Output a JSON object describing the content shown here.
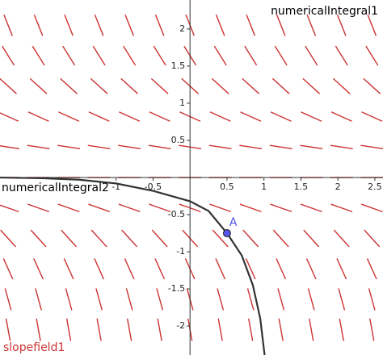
{
  "chart_data": {
    "type": "slopefield",
    "xlim": [
      -2.57,
      2.61
    ],
    "ylim": [
      -2.39,
      2.39
    ],
    "xticks": [
      -1,
      -0.5,
      0.5,
      1,
      1.5,
      2,
      2.5
    ],
    "yticks": [
      -2,
      -1.5,
      -1,
      -0.5,
      0.5,
      1,
      1.5,
      2
    ],
    "field": {
      "name": "slopefield1",
      "color": "#cc3333",
      "x": [
        -2.46,
        -2.05,
        -1.64,
        -1.23,
        -0.82,
        -0.41,
        0,
        0.41,
        0.82,
        1.23,
        1.64,
        2.05,
        2.46
      ],
      "rows": [
        {
          "y": 2.05,
          "slope": -2.5
        },
        {
          "y": 1.64,
          "slope": -1.6
        },
        {
          "y": 1.23,
          "slope": -0.9
        },
        {
          "y": 0.82,
          "slope": -0.45
        },
        {
          "y": 0.41,
          "slope": -0.15
        },
        {
          "y": 0,
          "slope": 0
        },
        {
          "y": -0.41,
          "slope": -0.35
        },
        {
          "y": -0.82,
          "slope": -1.1
        },
        {
          "y": -1.23,
          "slope": -2.2
        },
        {
          "y": -1.64,
          "slope": -3.6
        },
        {
          "y": -2.05,
          "slope": -5.5
        }
      ]
    },
    "curve": {
      "name": "numericalIntegral2",
      "color": "#333333",
      "x": [
        -2.6,
        -2,
        -1.5,
        -1,
        -0.5,
        0,
        0.25,
        0.5,
        0.7,
        0.85,
        0.95,
        1.01
      ],
      "y": [
        0,
        -0.01,
        -0.03,
        -0.08,
        -0.18,
        -0.32,
        -0.45,
        -0.75,
        -1.05,
        -1.45,
        -1.9,
        -2.4
      ]
    },
    "other_curve_label": "numericalIntegral1",
    "point": {
      "name": "A",
      "x": 0.5,
      "y": -0.75,
      "color": "#5555ee"
    }
  }
}
